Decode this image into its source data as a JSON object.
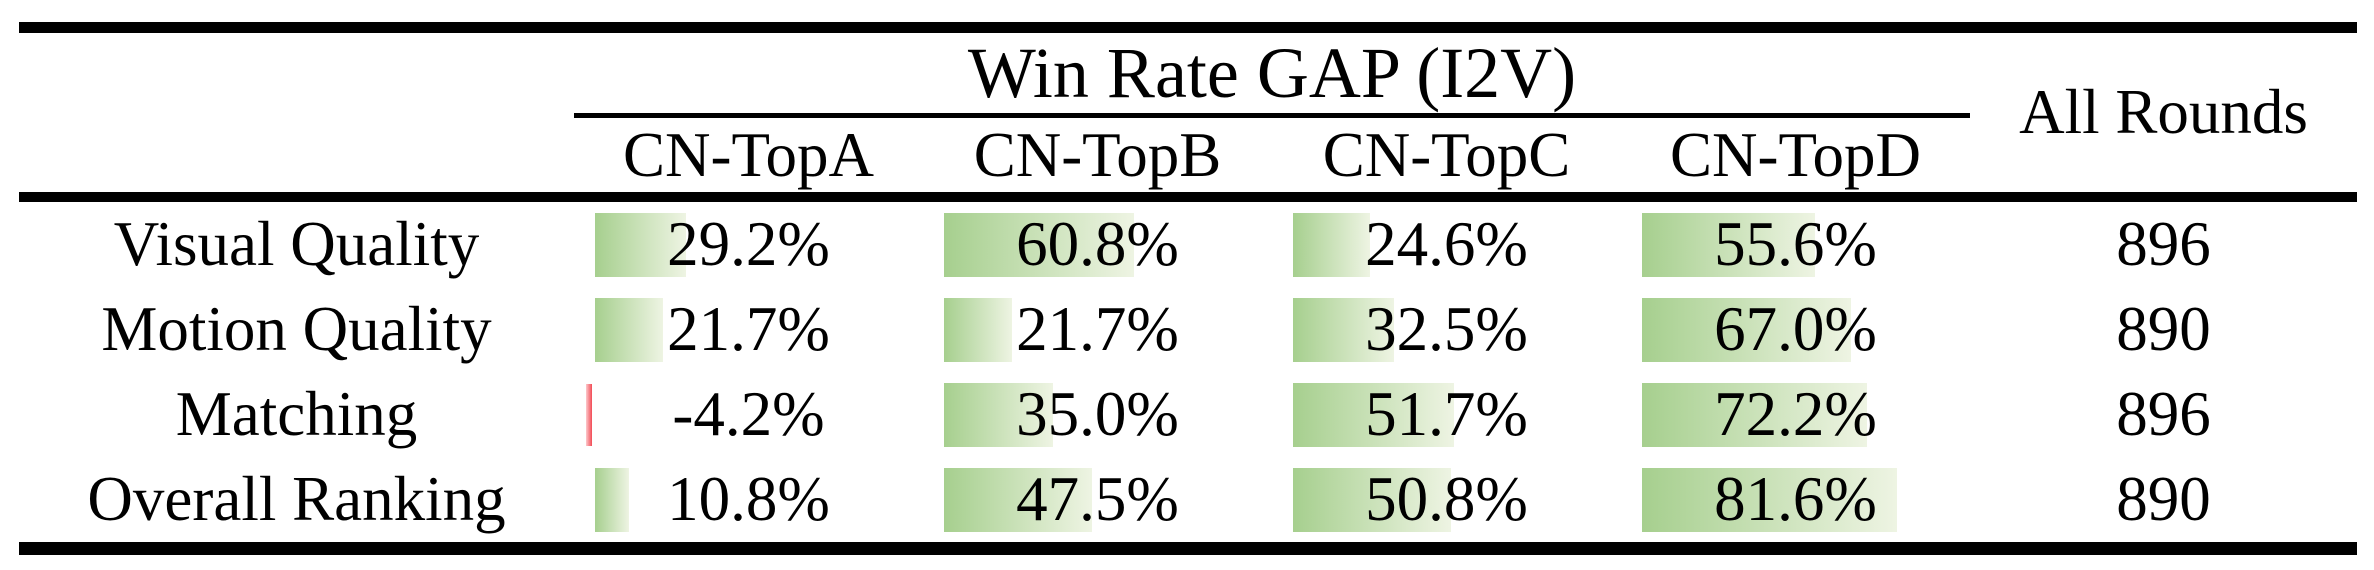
{
  "table": {
    "group_header": "Win Rate GAP (I2V)",
    "rounds_header": "All Rounds",
    "sub_headers": [
      "CN-TopA",
      "CN-TopB",
      "CN-TopC",
      "CN-TopD"
    ],
    "rows": [
      {
        "label": "Visual Quality",
        "cells": [
          {
            "text": "29.2%",
            "value": 29.2
          },
          {
            "text": "60.8%",
            "value": 60.8
          },
          {
            "text": "24.6%",
            "value": 24.6
          },
          {
            "text": "55.6%",
            "value": 55.6
          }
        ],
        "rounds": "896"
      },
      {
        "label": "Motion Quality",
        "cells": [
          {
            "text": "21.7%",
            "value": 21.7
          },
          {
            "text": "21.7%",
            "value": 21.7
          },
          {
            "text": "32.5%",
            "value": 32.5
          },
          {
            "text": "67.0%",
            "value": 67.0
          }
        ],
        "rounds": "890"
      },
      {
        "label": "Matching",
        "cells": [
          {
            "text": "-4.2%",
            "value": -4.2
          },
          {
            "text": "35.0%",
            "value": 35.0
          },
          {
            "text": "51.7%",
            "value": 51.7
          },
          {
            "text": "72.2%",
            "value": 72.2
          }
        ],
        "rounds": "896"
      },
      {
        "label": "Overall Ranking",
        "cells": [
          {
            "text": "10.8%",
            "value": 10.8
          },
          {
            "text": "47.5%",
            "value": 47.5
          },
          {
            "text": "50.8%",
            "value": 50.8
          },
          {
            "text": "81.6%",
            "value": 81.6
          }
        ],
        "rounds": "890"
      }
    ]
  },
  "colors": {
    "page_bg": "#ffffff",
    "text_color": "#000000",
    "rule_color": "#000000",
    "bar_green": "#a6cf8e",
    "bar_green_fade": "#eef4e3",
    "bar_red": "#f24b55"
  },
  "chart_data": {
    "type": "table",
    "title": "Win Rate GAP (I2V)",
    "columns": [
      "CN-TopA",
      "CN-TopB",
      "CN-TopC",
      "CN-TopD",
      "All Rounds"
    ],
    "row_labels": [
      "Visual Quality",
      "Motion Quality",
      "Matching",
      "Overall Ranking"
    ],
    "win_rate_gap_percent": {
      "Visual Quality": [
        29.2,
        60.8,
        24.6,
        55.6
      ],
      "Motion Quality": [
        21.7,
        21.7,
        32.5,
        67.0
      ],
      "Matching": [
        -4.2,
        35.0,
        51.7,
        72.2
      ],
      "Overall Ranking": [
        10.8,
        47.5,
        50.8,
        81.6
      ]
    },
    "all_rounds": {
      "Visual Quality": 896,
      "Motion Quality": 890,
      "Matching": 896,
      "Overall Ranking": 890
    },
    "notes": "Green gradient data bars proportional to positive percentages; thin red bar marks the negative value."
  }
}
